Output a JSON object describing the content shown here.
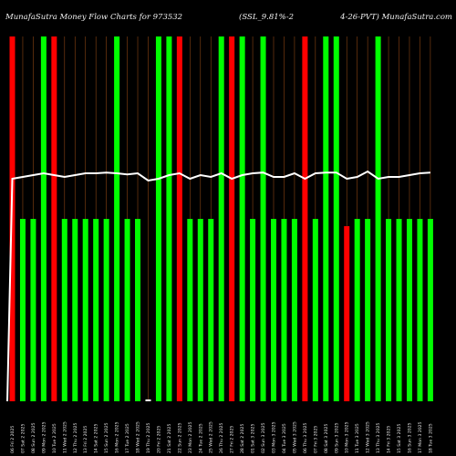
{
  "header": {
    "left": "MunafaSutra  Money Flow  Charts for 973532",
    "mid": "(SSL_9.81%-2",
    "right": "4-26-PVT) MunafaSutra.com"
  },
  "colors": {
    "background": "#000000",
    "green": "#00ff00",
    "red": "#ff0000",
    "white_line": "#ffffff",
    "grid": "#8b4513"
  },
  "chart_data": {
    "type": "bar",
    "ylim": [
      0,
      100
    ],
    "categories": [
      "06 Fri 2 2025",
      "07 Sat 2 2025",
      "08 Sun 2 2025",
      "09 Mon 2 2025",
      "10 Tue 2 2025",
      "11 Wed 2 2025",
      "12 Thu 2 2025",
      "13 Fri 2 2025",
      "14 Sat 2 2025",
      "15 Sun 2 2025",
      "16 Mon 2 2025",
      "17 Tue 2 2025",
      "18 Wed 2 2025",
      "19 Thu 2 2025",
      "20 Fri 2 2025",
      "21 Sat 2 2025",
      "22 Sun 2 2025",
      "23 Mon 2 2025",
      "24 Tue 2 2025",
      "25 Wed 2 2025",
      "26 Thu 2 2025",
      "27 Fri 2 2025",
      "28 Sat 2 2025",
      "01 Sat 3 2025",
      "02 Sun 3 2025",
      "03 Mon 3 2025",
      "04 Tue 3 2025",
      "05 Wed 3 2025",
      "06 Thu 3 2025",
      "07 Fri 3 2025",
      "08 Sat 3 2025",
      "09 Sun 3 2025",
      "10 Mon 3 2025",
      "11 Tue 3 2025",
      "12 Wed 3 2025",
      "13 Thu 3 2025",
      "14 Fri 3 2025",
      "15 Sat 3 2025",
      "16 Sun 3 2025",
      "17 Mon 3 2025",
      "18 Tue 3 2025"
    ],
    "bars": [
      {
        "value": 100,
        "color": "red"
      },
      {
        "value": 50,
        "color": "green"
      },
      {
        "value": 50,
        "color": "green"
      },
      {
        "value": 100,
        "color": "green"
      },
      {
        "value": 100,
        "color": "red"
      },
      {
        "value": 50,
        "color": "green"
      },
      {
        "value": 50,
        "color": "green"
      },
      {
        "value": 50,
        "color": "green"
      },
      {
        "value": 50,
        "color": "green"
      },
      {
        "value": 50,
        "color": "green"
      },
      {
        "value": 100,
        "color": "green"
      },
      {
        "value": 50,
        "color": "green"
      },
      {
        "value": 50,
        "color": "green"
      },
      {
        "value": 0.5,
        "color": "white"
      },
      {
        "value": 100,
        "color": "green"
      },
      {
        "value": 100,
        "color": "green"
      },
      {
        "value": 100,
        "color": "red"
      },
      {
        "value": 50,
        "color": "green"
      },
      {
        "value": 50,
        "color": "green"
      },
      {
        "value": 50,
        "color": "green"
      },
      {
        "value": 100,
        "color": "green"
      },
      {
        "value": 100,
        "color": "red"
      },
      {
        "value": 100,
        "color": "green"
      },
      {
        "value": 50,
        "color": "green"
      },
      {
        "value": 100,
        "color": "green"
      },
      {
        "value": 50,
        "color": "green"
      },
      {
        "value": 50,
        "color": "green"
      },
      {
        "value": 50,
        "color": "green"
      },
      {
        "value": 100,
        "color": "red"
      },
      {
        "value": 50,
        "color": "green"
      },
      {
        "value": 100,
        "color": "green"
      },
      {
        "value": 100,
        "color": "green"
      },
      {
        "value": 48,
        "color": "red"
      },
      {
        "value": 50,
        "color": "green"
      },
      {
        "value": 50,
        "color": "green"
      },
      {
        "value": 100,
        "color": "green"
      },
      {
        "value": 50,
        "color": "green"
      },
      {
        "value": 50,
        "color": "green"
      },
      {
        "value": 50,
        "color": "green"
      },
      {
        "value": 50,
        "color": "green"
      },
      {
        "value": 50,
        "color": "green"
      }
    ],
    "line": [
      61,
      61.5,
      62,
      62.5,
      62,
      61.5,
      62,
      62.5,
      62.5,
      62.7,
      62.5,
      62.2,
      62.5,
      60.5,
      61,
      62,
      62.5,
      61,
      62,
      61.5,
      62.5,
      61,
      62,
      62.5,
      62.7,
      61.5,
      61.5,
      62.5,
      61,
      62.5,
      62.7,
      62.7,
      61,
      61.5,
      63,
      61,
      61.5,
      61.5,
      62,
      62.5,
      62.7
    ]
  }
}
